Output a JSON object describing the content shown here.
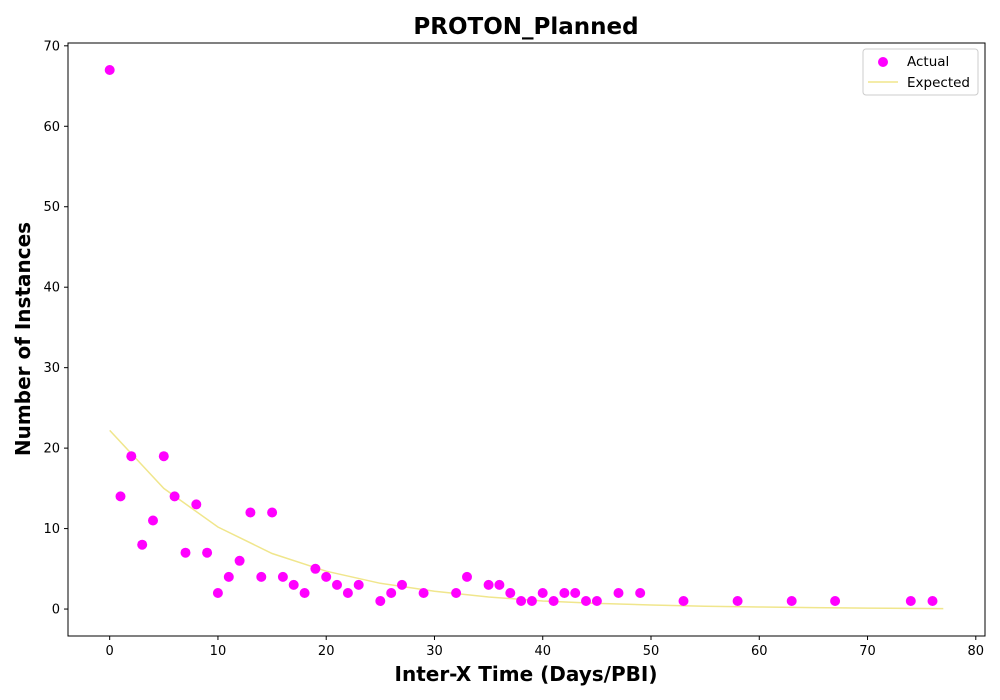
{
  "chart_data": {
    "type": "scatter",
    "title": "PROTON_Planned",
    "xlabel": "Inter-X Time (Days/PBI)",
    "ylabel": "Number of Instances",
    "xlim": [
      -3.85,
      80.85
    ],
    "ylim": [
      -3.35,
      70.35
    ],
    "xticks": [
      0,
      10,
      20,
      30,
      40,
      50,
      60,
      70,
      80
    ],
    "yticks": [
      0,
      10,
      20,
      30,
      40,
      50,
      60,
      70
    ],
    "grid": false,
    "legend_position": "top-right",
    "series": [
      {
        "name": "Actual",
        "kind": "scatter",
        "color": "#ff00ff",
        "x": [
          0,
          1,
          2,
          3,
          4,
          5,
          6,
          7,
          8,
          9,
          10,
          11,
          12,
          13,
          14,
          15,
          16,
          17,
          18,
          19,
          20,
          21,
          22,
          23,
          25,
          26,
          27,
          29,
          32,
          33,
          35,
          36,
          37,
          38,
          39,
          40,
          41,
          42,
          43,
          44,
          45,
          47,
          49,
          53,
          58,
          63,
          67,
          74,
          76
        ],
        "y": [
          67,
          14,
          19,
          8,
          11,
          19,
          14,
          7,
          13,
          7,
          2,
          4,
          6,
          12,
          4,
          12,
          4,
          3,
          2,
          5,
          4,
          3,
          2,
          3,
          1,
          2,
          3,
          2,
          2,
          4,
          3,
          3,
          2,
          1,
          1,
          2,
          1,
          2,
          2,
          1,
          1,
          2,
          2,
          1,
          1,
          1,
          1,
          1,
          1
        ]
      },
      {
        "name": "Expected",
        "kind": "line",
        "color": "#f0e68c",
        "x": [
          0,
          5,
          10,
          15,
          20,
          25,
          30,
          35,
          40,
          45,
          50,
          55,
          60,
          65,
          70,
          77
        ],
        "y": [
          22.2,
          15.0,
          10.2,
          6.9,
          4.7,
          3.2,
          2.2,
          1.5,
          1.0,
          0.7,
          0.5,
          0.35,
          0.25,
          0.18,
          0.12,
          0.05
        ]
      }
    ]
  }
}
